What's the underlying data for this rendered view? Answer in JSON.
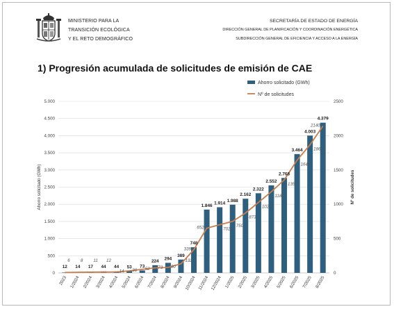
{
  "header": {
    "ministry_lines": [
      "MINISTERIO PARA LA",
      "TRANSICIÓN ECOLÓGICA",
      "Y EL RETO DEMOGRÁFICO"
    ],
    "secretaria": "SECRETARÍA DE ESTADO DE ENERGÍA",
    "direccion": "DIRECCIÓN GENERAL DE PLANIFICACIÓN Y COORDINACIÓN ENERGÉTICA",
    "subdireccion": "SUBDIRECCIÓN GENERAL DE EFICIENCIA Y ACCESO A LA ENERGÍA"
  },
  "colors": {
    "bar": "#2e5f7e",
    "line": "#c87d4b"
  },
  "chart_data": {
    "type": "bar",
    "title": "1) Progresión acumulada de solicitudes de emisión de CAE",
    "categories": [
      "2023",
      "1/2024",
      "2/2024",
      "3/2024",
      "4/2024",
      "5/2024",
      "6/2024",
      "7/2024",
      "8/2024",
      "9/2024",
      "10/2024",
      "11/2024",
      "12/2024",
      "1/2025",
      "2/2025",
      "3/2025",
      "4/2025",
      "5/2025",
      "6/2025",
      "7/2025",
      "8/2025"
    ],
    "series": [
      {
        "name": "Ahorro solicitado (GWh)",
        "type": "bar",
        "axis": "left",
        "values": [
          12,
          14,
          17,
          44,
          44,
          53,
          73,
          224,
          294,
          389,
          748,
          1846,
          1914,
          1988,
          2162,
          2322,
          2552,
          2768,
          3464,
          4003,
          4379
        ],
        "labels": [
          "12",
          "14",
          "17",
          "44",
          "44",
          "53",
          "73",
          "224",
          "294",
          "389",
          "748",
          "1.846",
          "1.914",
          "1.988",
          "2.162",
          "2.322",
          "2.552",
          "2.768",
          "3.464",
          "4.003",
          "4.379"
        ]
      },
      {
        "name": "Nº de solicitudes",
        "type": "line",
        "axis": "right",
        "values": [
          6,
          8,
          11,
          12,
          14,
          30,
          52,
          73,
          80,
          132,
          339,
          652,
          702,
          750,
          873,
          1027,
          1182,
          1355,
          1644,
          1867,
          2140
        ],
        "labels": [
          "6",
          "8",
          "11",
          "12",
          "14",
          "30",
          "52",
          "73",
          "80",
          "132",
          "339",
          "652",
          "702",
          "750",
          "873",
          "1027",
          "1182",
          "1355",
          "1644",
          "1867",
          "2140"
        ]
      }
    ],
    "ylabel": "Ahorro solicitado (GWh)",
    "y2label": "Nº de solicitudes",
    "ylim": [
      0,
      5000
    ],
    "y2lim": [
      0,
      2500
    ],
    "yticks": [
      0,
      500,
      1000,
      1500,
      2000,
      2500,
      3000,
      3500,
      4000,
      4500,
      5000
    ],
    "ytick_labels": [
      "0",
      "500",
      "1.000",
      "1.500",
      "2.000",
      "2.500",
      "3.000",
      "3.500",
      "4.000",
      "4.500",
      "5.000"
    ],
    "y2ticks": [
      0,
      500,
      1000,
      1500,
      2000,
      2500
    ],
    "y2tick_labels": [
      "0",
      "500",
      "1000",
      "1500",
      "2000",
      "2500"
    ],
    "grid": true,
    "legend": "top-right"
  }
}
